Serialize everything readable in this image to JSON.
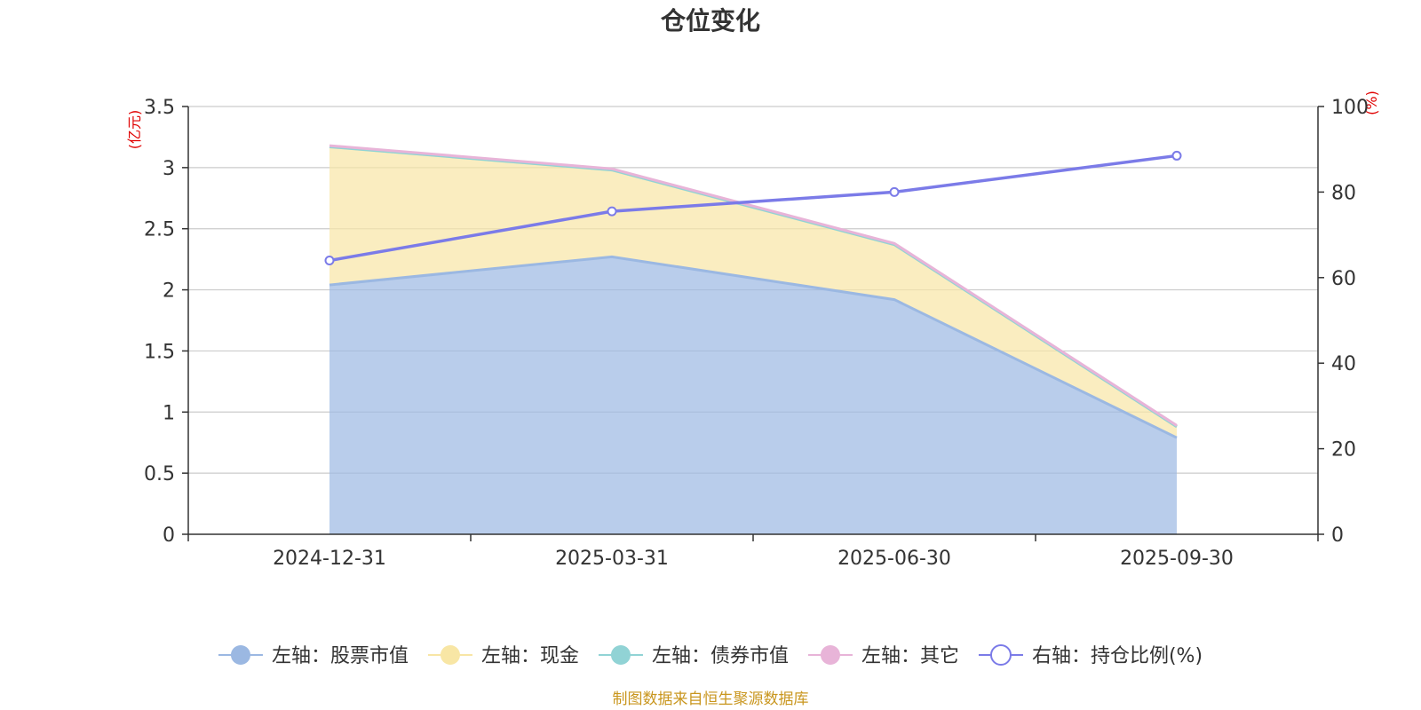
{
  "chart_data": {
    "type": "area",
    "title": "仓位变化",
    "categories": [
      "2024-12-31",
      "2025-03-31",
      "2025-06-30",
      "2025-09-30"
    ],
    "left_axis": {
      "unit": "(亿元)",
      "ylim": [
        0,
        3.5
      ],
      "ticks": [
        "0",
        "0.5",
        "1",
        "1.5",
        "2",
        "2.5",
        "3",
        "3.5"
      ]
    },
    "right_axis": {
      "unit": "(%)",
      "ylim": [
        0,
        100
      ],
      "ticks": [
        "0",
        "20",
        "40",
        "60",
        "80",
        "100"
      ]
    },
    "series": [
      {
        "name": "左轴：股票市值",
        "axis": "left",
        "stacked": true,
        "values": [
          2.04,
          2.27,
          1.92,
          0.79
        ],
        "color": "#9bb8e2"
      },
      {
        "name": "左轴：现金",
        "axis": "left",
        "stacked": true,
        "values": [
          1.13,
          0.71,
          0.45,
          0.09
        ],
        "color": "#f8e6a5"
      },
      {
        "name": "左轴：债券市值",
        "axis": "left",
        "stacked": true,
        "values": [
          0,
          0,
          0,
          0
        ],
        "color": "#91d3d5"
      },
      {
        "name": "左轴：其它",
        "axis": "left",
        "stacked": true,
        "values": [
          0.01,
          0.01,
          0.01,
          0.01
        ],
        "color": "#e8b4d8"
      },
      {
        "name": "右轴：持仓比例(%)",
        "axis": "right",
        "stacked": false,
        "values": [
          64,
          75.5,
          80,
          88.5
        ],
        "color": "#7b7be8"
      }
    ],
    "grid": true,
    "legend_position": "bottom"
  },
  "footer": "制图数据来自恒生聚源数据库"
}
